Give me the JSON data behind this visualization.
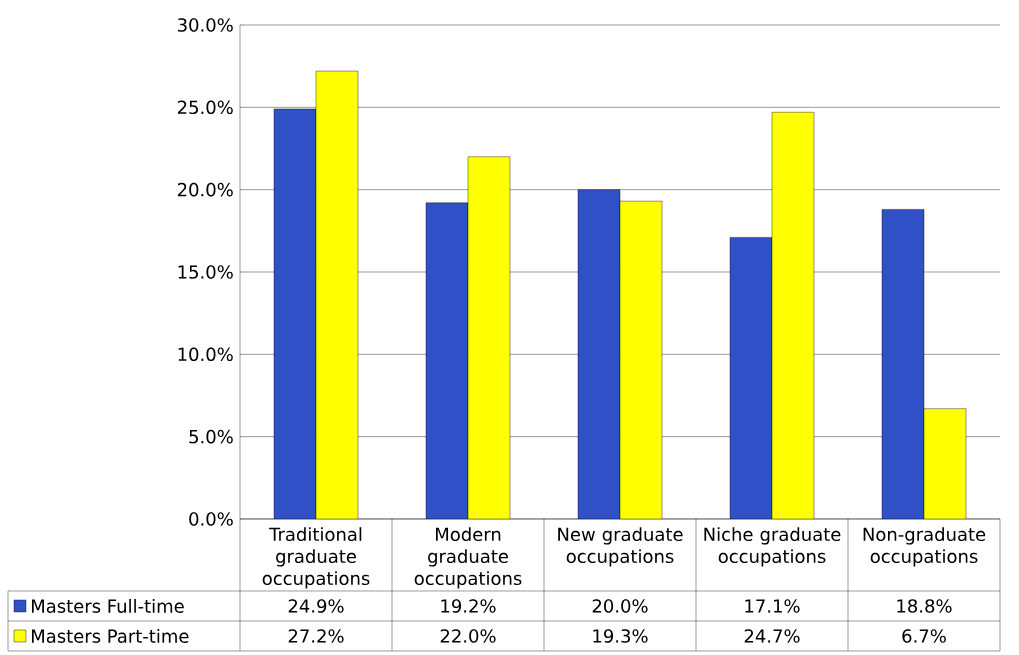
{
  "chart_data": {
    "type": "bar",
    "categories": [
      "Traditional graduate occupations",
      "Modern graduate occupations",
      "New graduate occupations",
      "Niche graduate occupations",
      "Non-graduate occupations"
    ],
    "series": [
      {
        "name": "Masters Full-time",
        "color": "#3050c8",
        "values": [
          24.9,
          19.2,
          20.0,
          17.1,
          18.8
        ],
        "value_labels": [
          "24.9%",
          "19.2%",
          "20.0%",
          "17.1%",
          "18.8%"
        ]
      },
      {
        "name": "Masters Part-time",
        "color": "#ffff00",
        "values": [
          27.2,
          22.0,
          19.3,
          24.7,
          6.7
        ],
        "value_labels": [
          "27.2%",
          "22.0%",
          "19.3%",
          "24.7%",
          "6.7%"
        ]
      }
    ],
    "ylim": [
      0,
      30
    ],
    "yticks": [
      {
        "value": 0,
        "label": "0.0%"
      },
      {
        "value": 5,
        "label": "5.0%"
      },
      {
        "value": 10,
        "label": "10.0%"
      },
      {
        "value": 15,
        "label": "15.0%"
      },
      {
        "value": 20,
        "label": "20.0%"
      },
      {
        "value": 25,
        "label": "25.0%"
      },
      {
        "value": 30,
        "label": "30.0%"
      }
    ],
    "grid": "y",
    "legend": "bottom"
  }
}
